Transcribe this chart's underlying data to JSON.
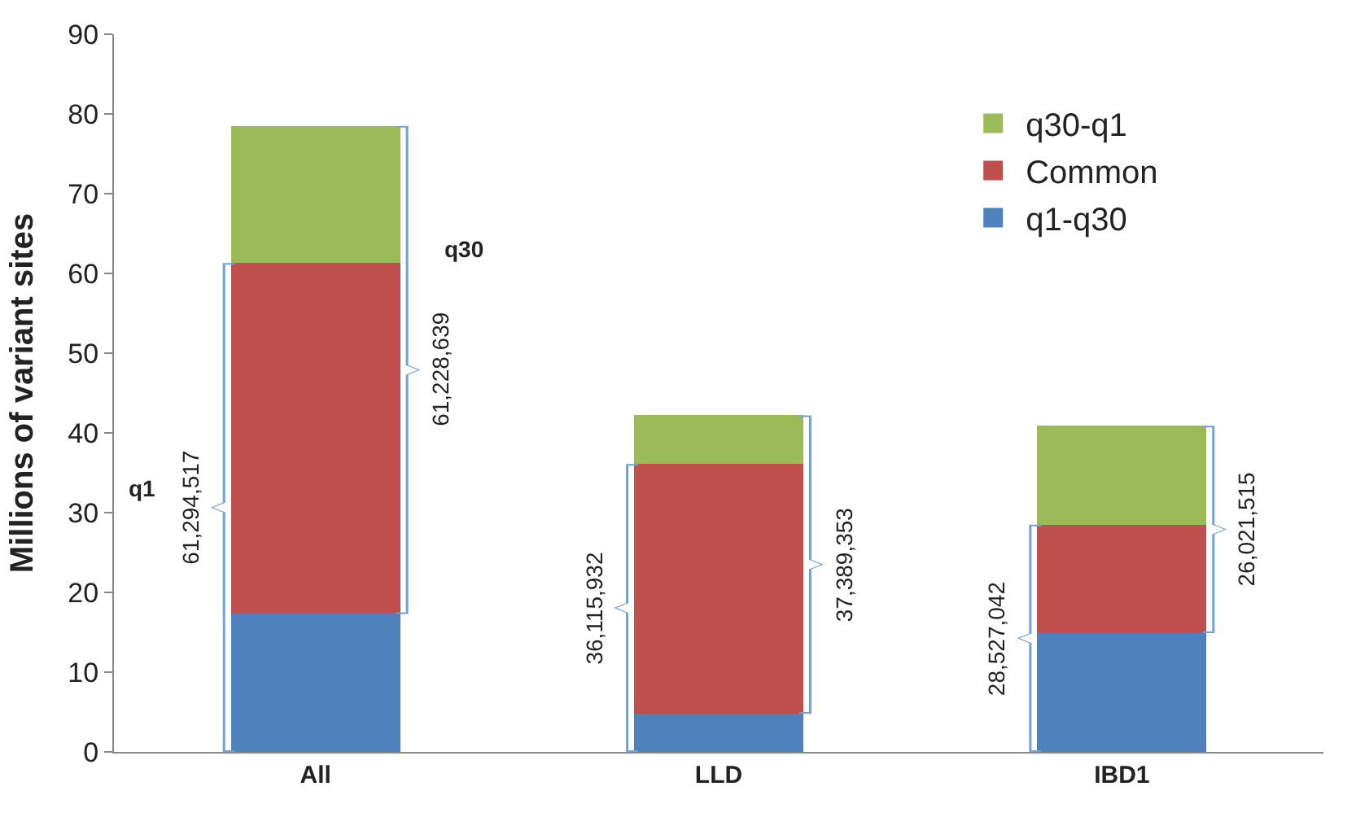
{
  "chart_data": {
    "type": "bar",
    "stacked": true,
    "ylabel": "Millions of variant sites",
    "categories": [
      "All",
      "LLD",
      "IBD1"
    ],
    "series": [
      {
        "name": "q1-q30",
        "color": "#4f81bd",
        "values": [
          17.3,
          4.8,
          14.9
        ]
      },
      {
        "name": "Common",
        "color": "#c0504d",
        "values": [
          44.0,
          31.3,
          13.6
        ]
      },
      {
        "name": "q30-q1",
        "color": "#9bbb59",
        "values": [
          17.2,
          6.1,
          12.4
        ]
      }
    ],
    "ylim": [
      0,
      90
    ],
    "yticks": [
      0,
      10,
      20,
      30,
      40,
      50,
      60,
      70,
      80,
      90
    ],
    "legend": "top right",
    "annotations": [
      "61,294,517",
      "61,228,639",
      "36,115,932",
      "37,389,353",
      "28,527,042",
      "26,021,515",
      "q1",
      "q30"
    ]
  }
}
